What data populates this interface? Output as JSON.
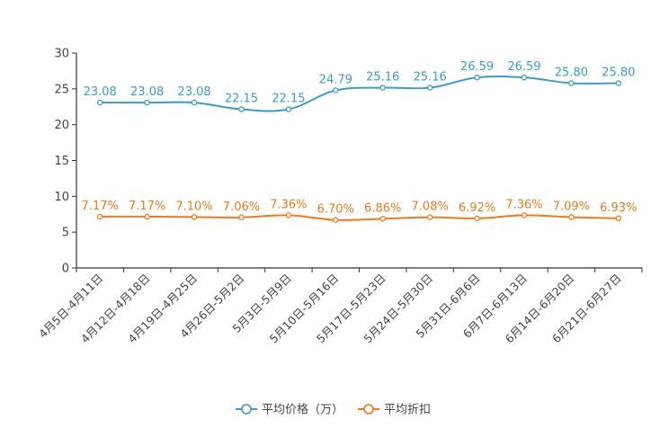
{
  "chart_data": {
    "type": "line",
    "title": "",
    "xlabel": "",
    "ylabel": "",
    "ylim": [
      0,
      30
    ],
    "yticks": [
      0,
      5,
      10,
      15,
      20,
      25,
      30
    ],
    "grid": false,
    "legend": "bottom-center",
    "categories": [
      "4月5日-4月11日",
      "4月12日-4月18日",
      "4月19日-4月25日",
      "4月26日-5月2日",
      "5月3日-5月9日",
      "5月10日-5月16日",
      "5月17日-5月23日",
      "5月24日-5月30日",
      "5月31日-6月6日",
      "6月7日-6月13日",
      "6月14日-6月20日",
      "6月21日-6月27日"
    ],
    "series": [
      {
        "name": "平均价格（万）",
        "color": "#3a9bd0",
        "values": [
          23.08,
          23.08,
          23.08,
          22.15,
          22.15,
          24.79,
          25.16,
          25.16,
          26.59,
          26.59,
          25.8,
          25.8
        ],
        "labels": [
          "23.08",
          "23.08",
          "23.08",
          "22.15",
          "22.15",
          "24.79",
          "25.16",
          "25.16",
          "26.59",
          "26.59",
          "25.80",
          "25.80"
        ]
      },
      {
        "name": "平均折扣",
        "color": "#f07a1a",
        "values": [
          7.17,
          7.17,
          7.1,
          7.06,
          7.36,
          6.7,
          6.86,
          7.08,
          6.92,
          7.36,
          7.09,
          6.93
        ],
        "labels": [
          "7.17%",
          "7.17%",
          "7.10%",
          "7.06%",
          "7.36%",
          "6.70%",
          "6.86%",
          "7.08%",
          "6.92%",
          "7.36%",
          "7.09%",
          "6.93%"
        ]
      }
    ]
  }
}
